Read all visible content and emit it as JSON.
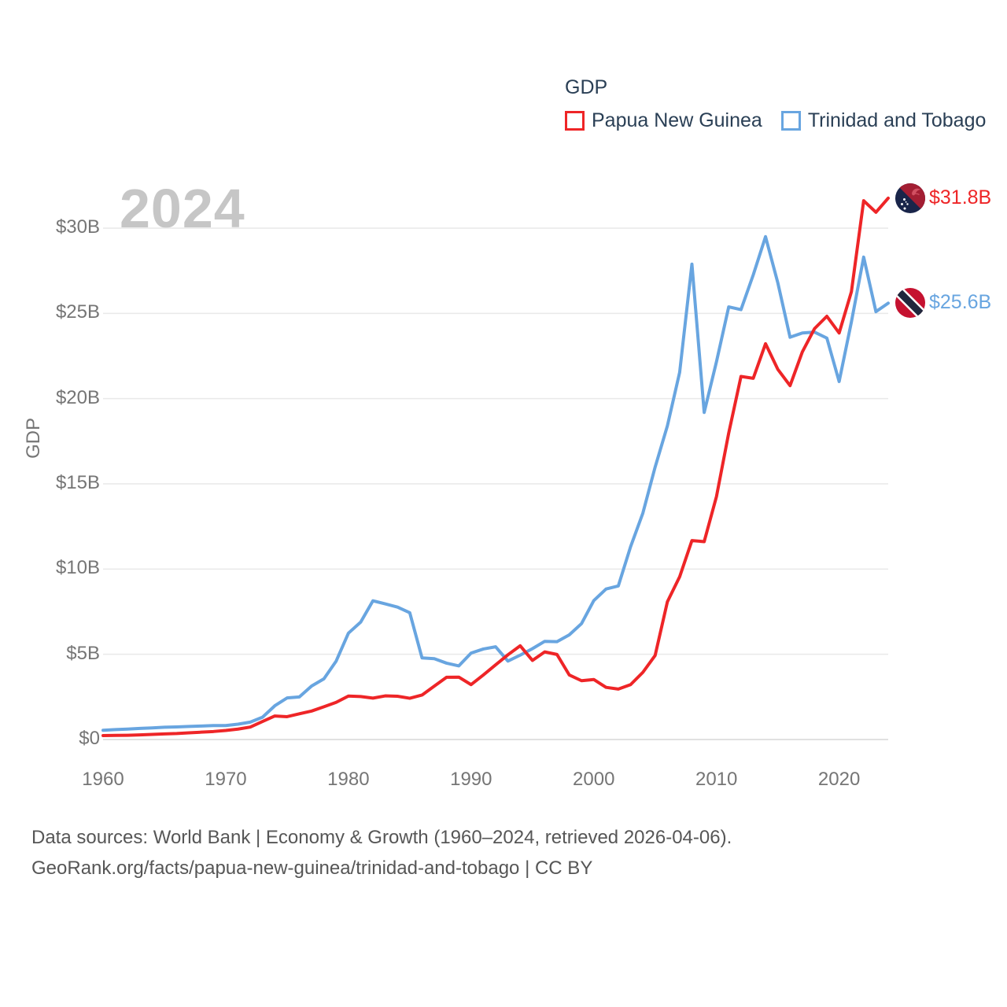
{
  "legend": {
    "title": "GDP",
    "items": [
      {
        "label": "Papua New Guinea",
        "color": "#ee2527"
      },
      {
        "label": "Trinidad and Tobago",
        "color": "#68a5e0"
      }
    ]
  },
  "footer": {
    "line1": "Data sources: World Bank | Economy & Growth (1960–2024, retrieved 2026-04-06).",
    "line2": "GeoRank.org/facts/papua-new-guinea/trinidad-and-tobago | CC BY"
  },
  "chart_data": {
    "type": "line",
    "title": "GDP",
    "ylabel": "GDP",
    "watermark": "2024",
    "grid": true,
    "legend_position": "top-right",
    "ylim": [
      0,
      32.5
    ],
    "grid_color": "#e9e9e9",
    "zero_line_color": "#d7d7d7",
    "watermark_color": "#c6c6c6",
    "y_axis": {
      "label": "GDP",
      "ticks": [
        {
          "v": 0,
          "label": "$0"
        },
        {
          "v": 5,
          "label": "$5B"
        },
        {
          "v": 10,
          "label": "$10B"
        },
        {
          "v": 15,
          "label": "$15B"
        },
        {
          "v": 20,
          "label": "$20B"
        },
        {
          "v": 25,
          "label": "$25B"
        },
        {
          "v": 30,
          "label": "$30B"
        }
      ]
    },
    "x_axis": {
      "ticks": [
        {
          "v": 1960,
          "label": "1960"
        },
        {
          "v": 1970,
          "label": "1970"
        },
        {
          "v": 1980,
          "label": "1980"
        },
        {
          "v": 1990,
          "label": "1990"
        },
        {
          "v": 2000,
          "label": "2000"
        },
        {
          "v": 2010,
          "label": "2010"
        },
        {
          "v": 2020,
          "label": "2020"
        }
      ]
    },
    "years": [
      1960,
      1961,
      1962,
      1963,
      1964,
      1965,
      1966,
      1967,
      1968,
      1969,
      1970,
      1971,
      1972,
      1973,
      1974,
      1975,
      1976,
      1977,
      1978,
      1979,
      1980,
      1981,
      1982,
      1983,
      1984,
      1985,
      1986,
      1987,
      1988,
      1989,
      1990,
      1991,
      1992,
      1993,
      1994,
      1995,
      1996,
      1997,
      1998,
      1999,
      2000,
      2001,
      2002,
      2003,
      2004,
      2005,
      2006,
      2007,
      2008,
      2009,
      2010,
      2011,
      2012,
      2013,
      2014,
      2015,
      2016,
      2017,
      2018,
      2019,
      2020,
      2021,
      2022,
      2023,
      2024
    ],
    "series": [
      {
        "name": "Papua New Guinea",
        "color": "#ee2527",
        "end_label": "$31.8B",
        "flag": "papua-new-guinea-flag-icon",
        "unit": "billion USD",
        "values": [
          0.23,
          0.24,
          0.25,
          0.27,
          0.3,
          0.33,
          0.35,
          0.39,
          0.43,
          0.47,
          0.53,
          0.61,
          0.73,
          1.06,
          1.38,
          1.34,
          1.51,
          1.67,
          1.92,
          2.18,
          2.55,
          2.52,
          2.43,
          2.56,
          2.54,
          2.42,
          2.61,
          3.13,
          3.65,
          3.66,
          3.22,
          3.79,
          4.38,
          4.97,
          5.5,
          4.64,
          5.14,
          4.99,
          3.79,
          3.45,
          3.52,
          3.06,
          2.96,
          3.22,
          3.94,
          4.93,
          8.08,
          9.55,
          11.67,
          11.61,
          14.25,
          17.98,
          21.3,
          21.19,
          23.22,
          21.72,
          20.76,
          22.74,
          24.11,
          24.83,
          23.85,
          26.27,
          31.61,
          30.93,
          31.76
        ]
      },
      {
        "name": "Trinidad and Tobago",
        "color": "#68a5e0",
        "end_label": "$25.6B",
        "flag": "trinidad-and-tobago-flag-icon",
        "unit": "billion USD",
        "values": [
          0.54,
          0.58,
          0.61,
          0.65,
          0.68,
          0.72,
          0.74,
          0.77,
          0.79,
          0.82,
          0.82,
          0.9,
          1.02,
          1.31,
          1.98,
          2.44,
          2.5,
          3.14,
          3.56,
          4.6,
          6.24,
          6.89,
          8.14,
          7.96,
          7.77,
          7.44,
          4.79,
          4.74,
          4.48,
          4.32,
          5.07,
          5.31,
          5.44,
          4.6,
          4.95,
          5.33,
          5.76,
          5.74,
          6.14,
          6.8,
          8.15,
          8.83,
          9.01,
          11.31,
          13.28,
          15.98,
          18.4,
          21.54,
          27.89,
          19.19,
          22.16,
          25.38,
          25.22,
          27.26,
          29.5,
          26.8,
          23.6,
          23.85,
          23.9,
          23.55,
          21.0,
          24.5,
          28.3,
          25.1,
          25.6
        ]
      }
    ]
  }
}
